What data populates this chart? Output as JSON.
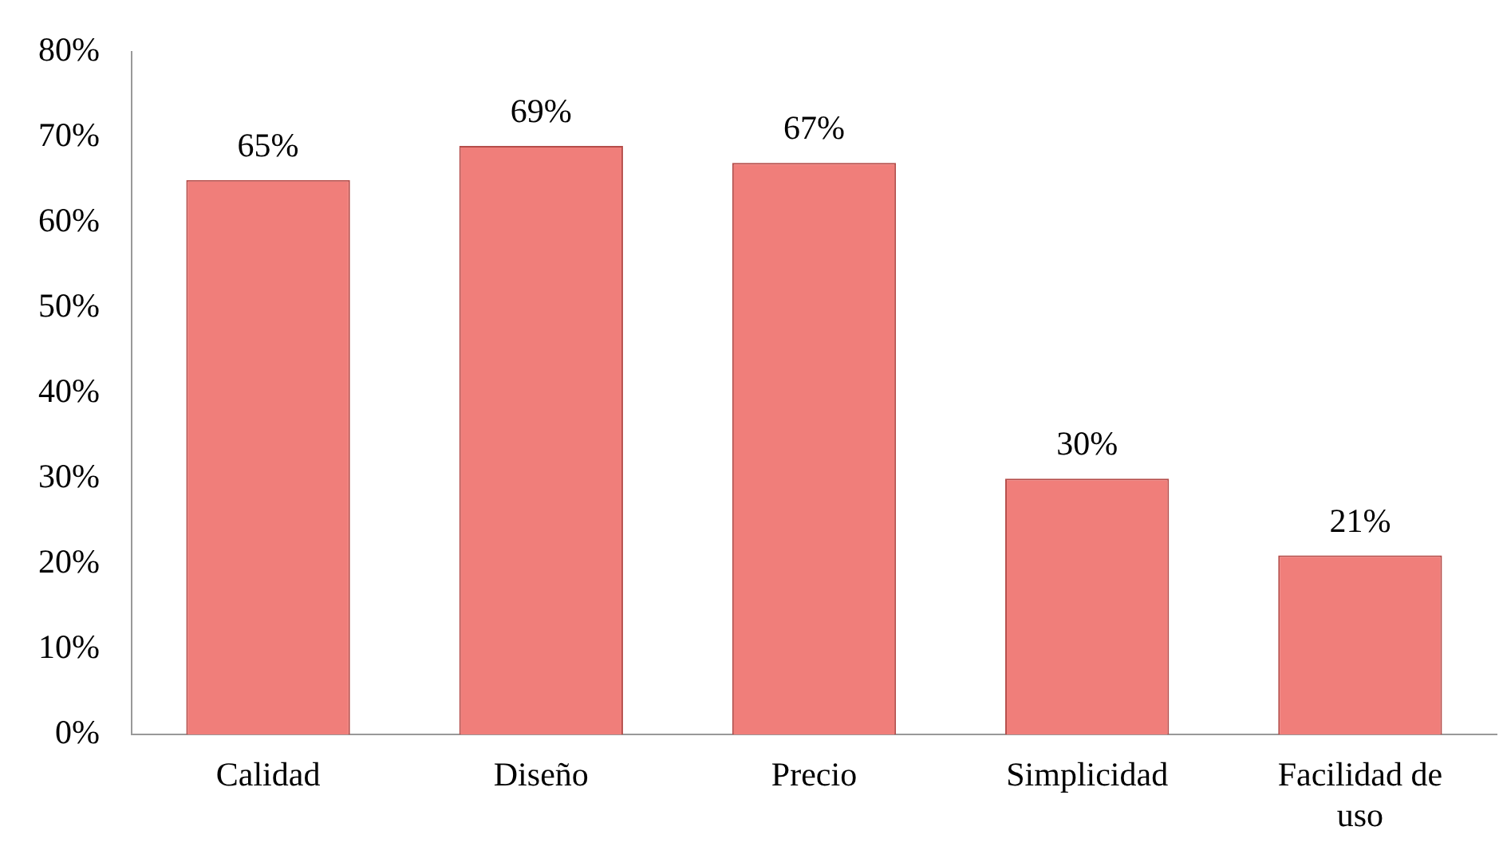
{
  "chart_data": {
    "type": "bar",
    "categories": [
      "Calidad",
      "Diseño",
      "Precio",
      "Simplicidad",
      "Facilidad de uso"
    ],
    "values": [
      65,
      69,
      67,
      30,
      21
    ],
    "value_labels": [
      "65%",
      "69%",
      "67%",
      "30%",
      "21%"
    ],
    "color": "#f07e7a",
    "ylim": [
      0,
      80
    ],
    "yticks": [
      {
        "value": 0,
        "label": "0%"
      },
      {
        "value": 10,
        "label": "10%"
      },
      {
        "value": 20,
        "label": "20%"
      },
      {
        "value": 30,
        "label": "30%"
      },
      {
        "value": 40,
        "label": "40%"
      },
      {
        "value": 50,
        "label": "50%"
      },
      {
        "value": 60,
        "label": "60%"
      },
      {
        "value": 70,
        "label": "70%"
      },
      {
        "value": 80,
        "label": "80%"
      }
    ],
    "grid": false,
    "legend": false
  }
}
